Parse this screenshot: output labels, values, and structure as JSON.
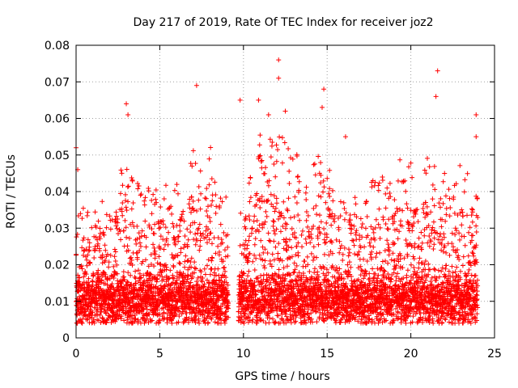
{
  "chart_data": {
    "type": "scatter",
    "title": "Day 217 of 2019, Rate Of TEC Index for receiver joz2",
    "xlabel": "GPS time / hours",
    "ylabel": "ROTI / TECUs",
    "xlim": [
      0,
      25
    ],
    "ylim": [
      0,
      0.08
    ],
    "x_ticks": [
      "0",
      "5",
      "10",
      "15",
      "20",
      "25"
    ],
    "y_ticks": [
      "0",
      "0.01",
      "0.02",
      "0.03",
      "0.04",
      "0.05",
      "0.06",
      "0.07",
      "0.08"
    ],
    "grid": true,
    "marker": "+",
    "color": "#ff0000",
    "data_gap_hours": [
      9.1,
      9.7
    ],
    "notable_points": [
      {
        "x": 0.0,
        "y": 0.052
      },
      {
        "x": 0.1,
        "y": 0.046
      },
      {
        "x": 3.0,
        "y": 0.064
      },
      {
        "x": 3.1,
        "y": 0.061
      },
      {
        "x": 7.2,
        "y": 0.069
      },
      {
        "x": 9.8,
        "y": 0.065
      },
      {
        "x": 10.9,
        "y": 0.065
      },
      {
        "x": 11.5,
        "y": 0.061
      },
      {
        "x": 12.1,
        "y": 0.076
      },
      {
        "x": 12.1,
        "y": 0.071
      },
      {
        "x": 12.5,
        "y": 0.062
      },
      {
        "x": 14.8,
        "y": 0.068
      },
      {
        "x": 14.7,
        "y": 0.063
      },
      {
        "x": 16.1,
        "y": 0.055
      },
      {
        "x": 21.6,
        "y": 0.073
      },
      {
        "x": 21.5,
        "y": 0.066
      },
      {
        "x": 23.9,
        "y": 0.061
      },
      {
        "x": 23.9,
        "y": 0.055
      }
    ],
    "envelope": [
      {
        "x": 0.0,
        "top": 0.036
      },
      {
        "x": 0.5,
        "top": 0.038
      },
      {
        "x": 1.0,
        "top": 0.034
      },
      {
        "x": 1.5,
        "top": 0.038
      },
      {
        "x": 2.0,
        "top": 0.043
      },
      {
        "x": 2.5,
        "top": 0.047
      },
      {
        "x": 3.0,
        "top": 0.058
      },
      {
        "x": 3.5,
        "top": 0.044
      },
      {
        "x": 4.0,
        "top": 0.04
      },
      {
        "x": 4.5,
        "top": 0.042
      },
      {
        "x": 5.0,
        "top": 0.044
      },
      {
        "x": 5.5,
        "top": 0.041
      },
      {
        "x": 6.0,
        "top": 0.042
      },
      {
        "x": 6.5,
        "top": 0.045
      },
      {
        "x": 7.0,
        "top": 0.052
      },
      {
        "x": 7.5,
        "top": 0.05
      },
      {
        "x": 8.0,
        "top": 0.054
      },
      {
        "x": 8.5,
        "top": 0.042
      },
      {
        "x": 9.0,
        "top": 0.04
      },
      {
        "x": 9.8,
        "top": 0.035
      },
      {
        "x": 10.5,
        "top": 0.048
      },
      {
        "x": 11.0,
        "top": 0.058
      },
      {
        "x": 11.5,
        "top": 0.057
      },
      {
        "x": 12.0,
        "top": 0.06
      },
      {
        "x": 12.5,
        "top": 0.054
      },
      {
        "x": 13.0,
        "top": 0.052
      },
      {
        "x": 13.5,
        "top": 0.048
      },
      {
        "x": 14.0,
        "top": 0.046
      },
      {
        "x": 14.5,
        "top": 0.058
      },
      {
        "x": 15.0,
        "top": 0.05
      },
      {
        "x": 15.5,
        "top": 0.042
      },
      {
        "x": 16.0,
        "top": 0.048
      },
      {
        "x": 16.5,
        "top": 0.044
      },
      {
        "x": 17.0,
        "top": 0.04
      },
      {
        "x": 17.5,
        "top": 0.042
      },
      {
        "x": 18.0,
        "top": 0.045
      },
      {
        "x": 18.5,
        "top": 0.044
      },
      {
        "x": 19.0,
        "top": 0.046
      },
      {
        "x": 19.5,
        "top": 0.05
      },
      {
        "x": 20.0,
        "top": 0.048
      },
      {
        "x": 20.5,
        "top": 0.044
      },
      {
        "x": 21.0,
        "top": 0.05
      },
      {
        "x": 21.5,
        "top": 0.052
      },
      {
        "x": 22.0,
        "top": 0.046
      },
      {
        "x": 22.5,
        "top": 0.044
      },
      {
        "x": 23.0,
        "top": 0.05
      },
      {
        "x": 23.5,
        "top": 0.046
      },
      {
        "x": 24.0,
        "top": 0.04
      }
    ],
    "baseline_range": [
      0.004,
      0.012
    ],
    "x_data_range": [
      0,
      24
    ]
  }
}
